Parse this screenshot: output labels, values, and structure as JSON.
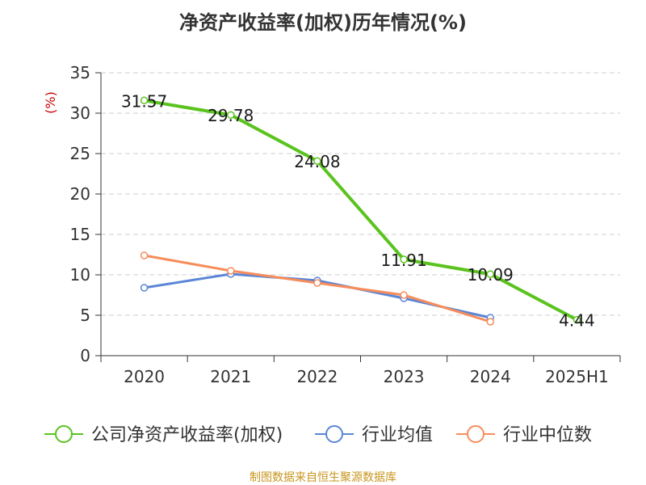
{
  "colors": {
    "company": "#5ac31e",
    "industry_avg": "#5b86d6",
    "industry_median": "#f68d5b",
    "grid": "#cccccc",
    "axis": "#333333",
    "unit": "#cc0000",
    "source": "#c8961e"
  },
  "source_note": "制图数据来自恒生聚源数据库",
  "chart_data": {
    "type": "line",
    "title": "净资产收益率(加权)历年情况(%)",
    "ylabel": "(%)",
    "xlabel": "",
    "categories": [
      "2020",
      "2021",
      "2022",
      "2023",
      "2024",
      "2025H1"
    ],
    "ylim": [
      0,
      35
    ],
    "yticks": [
      0,
      5,
      10,
      15,
      20,
      25,
      30,
      35
    ],
    "grid": true,
    "legend_position": "bottom",
    "series": [
      {
        "name": "公司净资产收益率(加权)",
        "color_key": "company",
        "values": [
          31.57,
          29.78,
          24.08,
          11.91,
          10.09,
          4.44
        ],
        "labels": [
          "31.57",
          "29.78",
          "24.08",
          "11.91",
          "10.09",
          "4.44"
        ]
      },
      {
        "name": "行业均值",
        "color_key": "industry_avg",
        "values": [
          8.4,
          10.1,
          9.3,
          7.1,
          4.7,
          null
        ]
      },
      {
        "name": "行业中位数",
        "color_key": "industry_median",
        "values": [
          12.4,
          10.5,
          9.0,
          7.5,
          4.2,
          null
        ]
      }
    ]
  }
}
